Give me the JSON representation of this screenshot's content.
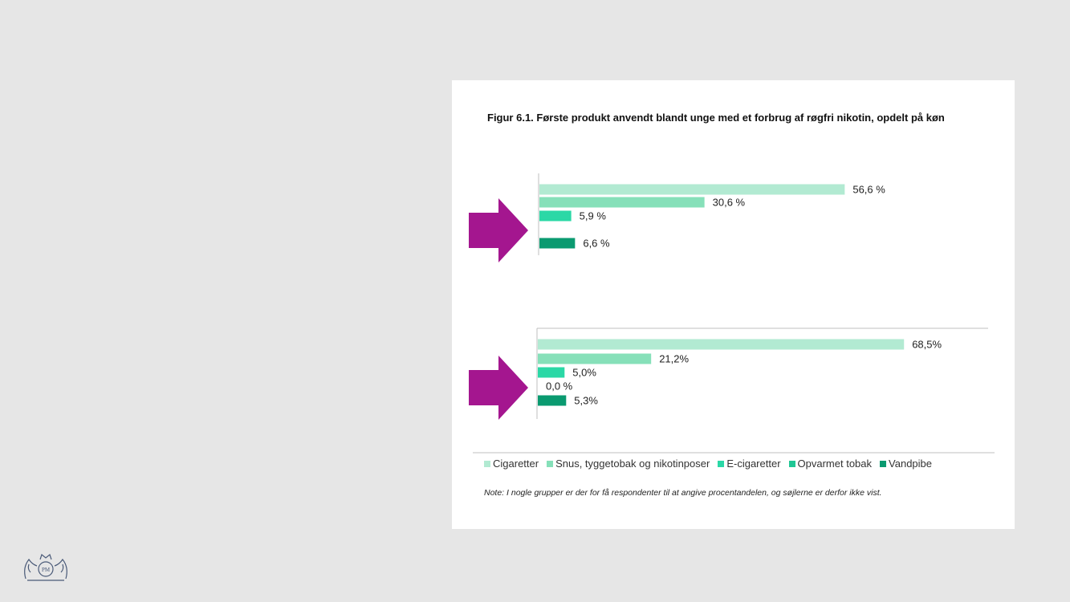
{
  "figure": {
    "title": "Figur 6.1. Første produkt anvendt blandt unge med et forbrug af røgfri nikotin, opdelt på køn",
    "note": "Note: I nogle grupper er der for få respondenter til at angive procentandelen, og søjlerne er derfor ikke vist."
  },
  "chart_data": {
    "type": "bar",
    "orientation": "horizontal",
    "categories": [
      "Cigaretter",
      "Snus, tyggetobak og nikotinposer",
      "E-cigaretter",
      "Opvarmet tobak",
      "Vandpibe"
    ],
    "colors": [
      "#b2ead2",
      "#86e0b9",
      "#2bd8a6",
      "#1fc694",
      "#0a9a70"
    ],
    "groups": [
      {
        "values": [
          56.6,
          30.6,
          5.9,
          null,
          6.6
        ],
        "labels": [
          "56,6 %",
          "30,6 %",
          "5,9 %",
          "",
          "6,6 %"
        ]
      },
      {
        "values": [
          68.5,
          21.2,
          5.0,
          0.0,
          5.3
        ],
        "labels": [
          "68,5%",
          "21,2%",
          "5,0%",
          "0,0 %",
          "5,3%"
        ]
      }
    ],
    "legend_position": "bottom",
    "grid": false
  },
  "decor": {
    "arrow_color": "#a4168f",
    "logo": "philip-morris-crest-logo"
  }
}
